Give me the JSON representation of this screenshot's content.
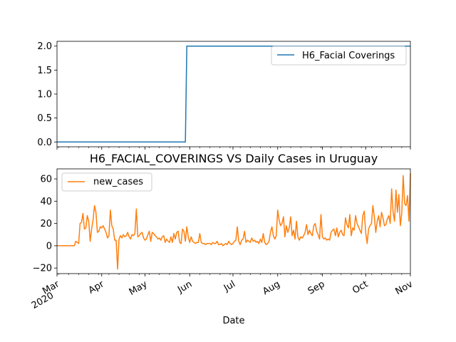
{
  "chart_data": [
    {
      "type": "line",
      "title": "",
      "xlabel": "",
      "ylabel": "",
      "ylim": [
        -0.1,
        2.1
      ],
      "yticks": [
        "0.0",
        "0.5",
        "1.0",
        "1.5",
        "2.0"
      ],
      "ytick_values": [
        0.0,
        0.5,
        1.0,
        1.5,
        2.0
      ],
      "legend_position": "upper right",
      "series": [
        {
          "name": "H6_Facial Coverings",
          "color": "#1f77b4",
          "x": [
            "2020-03-01",
            "2020-05-29",
            "2020-05-30",
            "2020-11-01"
          ],
          "values": [
            0,
            0,
            2,
            2
          ]
        }
      ]
    },
    {
      "type": "line",
      "title": "H6_FACIAL_COVERINGS VS Daily Cases in Uruguay",
      "xlabel": "Date",
      "ylabel": "",
      "ylim": [
        -25,
        69
      ],
      "yticks": [
        "−20",
        "0",
        "20",
        "40",
        "60"
      ],
      "ytick_values": [
        -20,
        0,
        20,
        40,
        60
      ],
      "legend_position": "upper left",
      "x_range": [
        "2020-03-01",
        "2020-11-01"
      ],
      "xtick_labels": [
        {
          "date": "2020-03-01",
          "label": "Mar",
          "sublabel": "2020"
        },
        {
          "date": "2020-04-01",
          "label": "Apr",
          "sublabel": ""
        },
        {
          "date": "2020-05-01",
          "label": "May",
          "sublabel": ""
        },
        {
          "date": "2020-06-01",
          "label": "Jun",
          "sublabel": ""
        },
        {
          "date": "2020-07-01",
          "label": "Jul",
          "sublabel": ""
        },
        {
          "date": "2020-08-01",
          "label": "Aug",
          "sublabel": ""
        },
        {
          "date": "2020-09-01",
          "label": "Sep",
          "sublabel": ""
        },
        {
          "date": "2020-10-01",
          "label": "Oct",
          "sublabel": ""
        },
        {
          "date": "2020-11-01",
          "label": "Nov",
          "sublabel": ""
        }
      ],
      "series": [
        {
          "name": "new_cases",
          "color": "#ff7f0e",
          "x": [
            "2020-03-01",
            "2020-03-13",
            "2020-03-14",
            "2020-03-15",
            "2020-03-16",
            "2020-03-17",
            "2020-03-18",
            "2020-03-19",
            "2020-03-20",
            "2020-03-21",
            "2020-03-22",
            "2020-03-23",
            "2020-03-24",
            "2020-03-25",
            "2020-03-26",
            "2020-03-27",
            "2020-03-28",
            "2020-03-29",
            "2020-03-30",
            "2020-03-31",
            "2020-04-01",
            "2020-04-02",
            "2020-04-03",
            "2020-04-04",
            "2020-04-05",
            "2020-04-06",
            "2020-04-07",
            "2020-04-08",
            "2020-04-09",
            "2020-04-10",
            "2020-04-11",
            "2020-04-12",
            "2020-04-13",
            "2020-04-14",
            "2020-04-15",
            "2020-04-16",
            "2020-04-17",
            "2020-04-18",
            "2020-04-19",
            "2020-04-20",
            "2020-04-21",
            "2020-04-22",
            "2020-04-23",
            "2020-04-24",
            "2020-04-25",
            "2020-04-26",
            "2020-04-27",
            "2020-04-28",
            "2020-04-29",
            "2020-04-30",
            "2020-05-01",
            "2020-05-02",
            "2020-05-03",
            "2020-05-04",
            "2020-05-05",
            "2020-05-06",
            "2020-05-07",
            "2020-05-08",
            "2020-05-09",
            "2020-05-10",
            "2020-05-11",
            "2020-05-12",
            "2020-05-13",
            "2020-05-14",
            "2020-05-15",
            "2020-05-16",
            "2020-05-17",
            "2020-05-18",
            "2020-05-19",
            "2020-05-20",
            "2020-05-21",
            "2020-05-22",
            "2020-05-23",
            "2020-05-24",
            "2020-05-25",
            "2020-05-26",
            "2020-05-27",
            "2020-05-28",
            "2020-05-29",
            "2020-05-30",
            "2020-05-31",
            "2020-06-01",
            "2020-06-02",
            "2020-06-03",
            "2020-06-04",
            "2020-06-05",
            "2020-06-06",
            "2020-06-07",
            "2020-06-08",
            "2020-06-09",
            "2020-06-10",
            "2020-06-11",
            "2020-06-12",
            "2020-06-13",
            "2020-06-14",
            "2020-06-15",
            "2020-06-16",
            "2020-06-17",
            "2020-06-18",
            "2020-06-19",
            "2020-06-20",
            "2020-06-21",
            "2020-06-22",
            "2020-06-23",
            "2020-06-24",
            "2020-06-25",
            "2020-06-26",
            "2020-06-27",
            "2020-06-28",
            "2020-06-29",
            "2020-06-30",
            "2020-07-01",
            "2020-07-02",
            "2020-07-03",
            "2020-07-04",
            "2020-07-05",
            "2020-07-06",
            "2020-07-07",
            "2020-07-08",
            "2020-07-09",
            "2020-07-10",
            "2020-07-11",
            "2020-07-12",
            "2020-07-13",
            "2020-07-14",
            "2020-07-15",
            "2020-07-16",
            "2020-07-17",
            "2020-07-18",
            "2020-07-19",
            "2020-07-20",
            "2020-07-21",
            "2020-07-22",
            "2020-07-23",
            "2020-07-24",
            "2020-07-25",
            "2020-07-26",
            "2020-07-27",
            "2020-07-28",
            "2020-07-29",
            "2020-07-30",
            "2020-07-31",
            "2020-08-01",
            "2020-08-02",
            "2020-08-03",
            "2020-08-04",
            "2020-08-05",
            "2020-08-06",
            "2020-08-07",
            "2020-08-08",
            "2020-08-09",
            "2020-08-10",
            "2020-08-11",
            "2020-08-12",
            "2020-08-13",
            "2020-08-14",
            "2020-08-15",
            "2020-08-16",
            "2020-08-17",
            "2020-08-18",
            "2020-08-19",
            "2020-08-20",
            "2020-08-21",
            "2020-08-22",
            "2020-08-23",
            "2020-08-24",
            "2020-08-25",
            "2020-08-26",
            "2020-08-27",
            "2020-08-28",
            "2020-08-29",
            "2020-08-30",
            "2020-08-31",
            "2020-09-01",
            "2020-09-02",
            "2020-09-03",
            "2020-09-04",
            "2020-09-05",
            "2020-09-06",
            "2020-09-07",
            "2020-09-08",
            "2020-09-09",
            "2020-09-10",
            "2020-09-11",
            "2020-09-12",
            "2020-09-13",
            "2020-09-14",
            "2020-09-15",
            "2020-09-16",
            "2020-09-17",
            "2020-09-18",
            "2020-09-19",
            "2020-09-20",
            "2020-09-21",
            "2020-09-22",
            "2020-09-23",
            "2020-09-24",
            "2020-09-25",
            "2020-09-26",
            "2020-09-27",
            "2020-09-28",
            "2020-09-29",
            "2020-09-30",
            "2020-10-01",
            "2020-10-02",
            "2020-10-03",
            "2020-10-04",
            "2020-10-05",
            "2020-10-06",
            "2020-10-07",
            "2020-10-08",
            "2020-10-09",
            "2020-10-10",
            "2020-10-11",
            "2020-10-12",
            "2020-10-13",
            "2020-10-14",
            "2020-10-15",
            "2020-10-16",
            "2020-10-17",
            "2020-10-18",
            "2020-10-19",
            "2020-10-20",
            "2020-10-21",
            "2020-10-22",
            "2020-10-23",
            "2020-10-24",
            "2020-10-25",
            "2020-10-26",
            "2020-10-27",
            "2020-10-28",
            "2020-10-29",
            "2020-10-30",
            "2020-10-31",
            "2020-11-01"
          ],
          "values": [
            0,
            0,
            4,
            3,
            2,
            20,
            21,
            29,
            15,
            16,
            27,
            22,
            4,
            15,
            23,
            36,
            30,
            12,
            13,
            17,
            16,
            18,
            15,
            12,
            7,
            9,
            32,
            18,
            15,
            5,
            5,
            -21,
            6,
            9,
            7,
            10,
            8,
            9,
            12,
            8,
            6,
            10,
            9,
            11,
            33,
            8,
            9,
            11,
            12,
            7,
            5,
            6,
            10,
            13,
            4,
            12,
            11,
            9,
            8,
            6,
            7,
            5,
            8,
            9,
            3,
            6,
            4,
            3,
            8,
            3,
            11,
            6,
            12,
            13,
            3,
            2,
            15,
            13,
            4,
            17,
            8,
            3,
            8,
            4,
            3,
            2,
            3,
            3,
            11,
            3,
            2,
            2,
            1,
            2,
            2,
            2,
            1,
            3,
            2,
            2,
            4,
            1,
            1,
            2,
            0,
            1,
            2,
            1,
            4,
            2,
            1,
            2,
            4,
            5,
            17,
            4,
            1,
            5,
            6,
            13,
            3,
            5,
            4,
            3,
            7,
            4,
            5,
            3,
            4,
            2,
            6,
            3,
            11,
            3,
            1,
            2,
            4,
            12,
            17,
            9,
            6,
            9,
            32,
            23,
            18,
            20,
            26,
            8,
            18,
            12,
            16,
            26,
            9,
            14,
            6,
            22,
            8,
            5,
            8,
            7,
            9,
            12,
            19,
            10,
            14,
            11,
            9,
            18,
            20,
            13,
            10,
            6,
            28,
            8,
            6,
            7,
            5,
            6,
            5,
            12,
            14,
            15,
            9,
            16,
            8,
            12,
            14,
            10,
            9,
            25,
            19,
            16,
            28,
            9,
            16,
            14,
            27,
            20,
            17,
            14,
            11,
            27,
            31,
            12,
            2,
            15,
            18,
            20,
            36,
            26,
            12,
            22,
            27,
            17,
            30,
            25,
            18,
            19,
            24,
            27,
            20,
            51,
            30,
            22,
            50,
            30,
            46,
            18,
            29,
            63,
            38,
            36,
            45,
            22,
            65
          ]
        }
      ]
    }
  ]
}
